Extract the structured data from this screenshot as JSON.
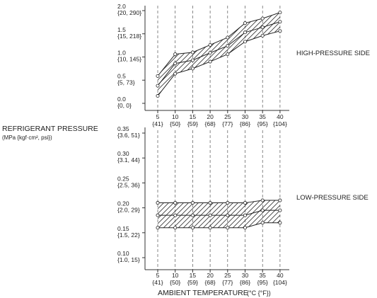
{
  "chart_data": [
    {
      "type": "area",
      "panel": "high",
      "side_label": "HIGH-PRESSURE SIDE",
      "categories": [
        "5",
        "10",
        "15",
        "20",
        "25",
        "30",
        "35",
        "40"
      ],
      "category_sublabels": [
        "{41}",
        "{50}",
        "{59}",
        "{68}",
        "{77}",
        "{86}",
        "{95}",
        "{104}"
      ],
      "ylim": [
        0,
        2.0
      ],
      "yticks": [
        {
          "v": 2.0,
          "l1": "2.0",
          "l2": "{20, 290}"
        },
        {
          "v": 1.5,
          "l1": "1.5",
          "l2": "{15, 218}"
        },
        {
          "v": 1.0,
          "l1": "1.0",
          "l2": "{10, 145}"
        },
        {
          "v": 0.5,
          "l1": "0.5",
          "l2": "{5, 73}"
        },
        {
          "v": 0.0,
          "l1": "0.0",
          "l2": "{0, 0}"
        }
      ],
      "series": [
        {
          "role": "upper",
          "values": [
            0.59,
            1.06,
            1.1,
            1.26,
            1.42,
            1.73,
            1.83,
            1.96
          ]
        },
        {
          "role": "middle",
          "values": [
            0.38,
            0.86,
            0.93,
            1.09,
            1.24,
            1.53,
            1.64,
            1.76
          ]
        },
        {
          "role": "lower",
          "values": [
            0.16,
            0.64,
            0.75,
            0.9,
            1.06,
            1.33,
            1.46,
            1.56
          ]
        }
      ],
      "grid": "vertical dashed"
    },
    {
      "type": "area",
      "panel": "low",
      "side_label": "LOW-PRESSURE SIDE",
      "categories": [
        "5",
        "10",
        "15",
        "20",
        "25",
        "30",
        "35",
        "40"
      ],
      "category_sublabels": [
        "{41}",
        "{50}",
        "{59}",
        "{68}",
        "{77}",
        "{86}",
        "{95}",
        "{104}"
      ],
      "ylim": [
        0.08,
        0.35
      ],
      "yticks": [
        {
          "v": 0.35,
          "l1": "0.35",
          "l2": "{3.6, 51}"
        },
        {
          "v": 0.3,
          "l1": "0.30",
          "l2": "{3.1, 44}"
        },
        {
          "v": 0.25,
          "l1": "0.25",
          "l2": "{2.5, 36}"
        },
        {
          "v": 0.2,
          "l1": "0.20",
          "l2": "{2.0, 29}"
        },
        {
          "v": 0.15,
          "l1": "0.15",
          "l2": "{1.5, 22}"
        },
        {
          "v": 0.1,
          "l1": "0.10",
          "l2": "{1.0, 15}"
        }
      ],
      "series": [
        {
          "role": "upper",
          "values": [
            0.21,
            0.21,
            0.21,
            0.21,
            0.21,
            0.21,
            0.215,
            0.215
          ]
        },
        {
          "role": "middle",
          "values": [
            0.185,
            0.185,
            0.185,
            0.185,
            0.185,
            0.185,
            0.195,
            0.195
          ]
        },
        {
          "role": "lower",
          "values": [
            0.16,
            0.16,
            0.16,
            0.16,
            0.16,
            0.16,
            0.17,
            0.17
          ]
        }
      ],
      "grid": "vertical dashed"
    }
  ],
  "y_title": "REFRIGERANT PRESSURE",
  "y_subtitle": "(MPa {kgf·cm², psi})",
  "x_title": "AMBIENT TEMPERATURE",
  "x_unit": "(°C {°F})"
}
